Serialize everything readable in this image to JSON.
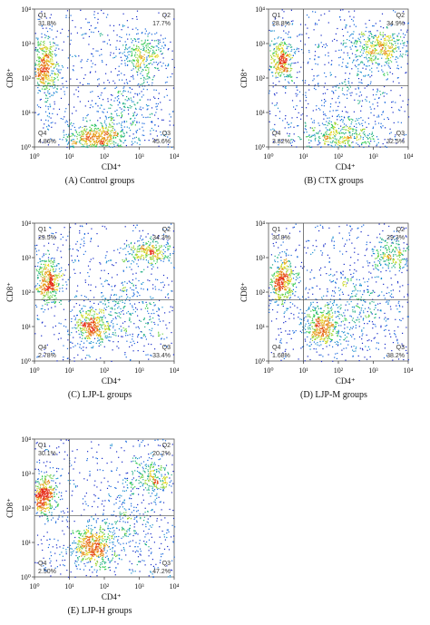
{
  "chart_data": [
    {
      "type": "scatter",
      "caption": "(A) Control groups",
      "xlabel": "CD4⁺",
      "ylabel": "CD8⁺",
      "xscale": "log",
      "yscale": "log",
      "xlim": [
        1,
        10000
      ],
      "ylim": [
        1,
        10000
      ],
      "xticks": [
        "10⁰",
        "10¹",
        "10²",
        "10³",
        "10⁴"
      ],
      "yticks": [
        "10⁰",
        "10¹",
        "10²",
        "10³",
        "10⁴"
      ],
      "gate": {
        "x": 10,
        "y": 60
      },
      "quadrants": {
        "Q1": {
          "label": "Q1",
          "value": "31.8%"
        },
        "Q2": {
          "label": "Q2",
          "value": "17.7%"
        },
        "Q3": {
          "label": "Q3",
          "value": "45.6%"
        },
        "Q4": {
          "label": "Q4",
          "value": "4.86%"
        }
      },
      "populations": [
        {
          "x": 2.0,
          "y": 220,
          "sx": 0.18,
          "sy": 0.4,
          "n": 420
        },
        {
          "x": 60,
          "y": 1.8,
          "sx": 0.45,
          "sy": 0.25,
          "n": 520
        },
        {
          "x": 1200,
          "y": 500,
          "sx": 0.35,
          "sy": 0.3,
          "n": 260
        },
        {
          "x": 500,
          "y": 15,
          "sx": 0.5,
          "sy": 0.55,
          "n": 200
        }
      ]
    },
    {
      "type": "scatter",
      "caption": "(B) CTX groups",
      "xlabel": "CD4⁺",
      "ylabel": "CD8⁺",
      "xscale": "log",
      "yscale": "log",
      "xlim": [
        1,
        10000
      ],
      "ylim": [
        1,
        10000
      ],
      "xticks": [
        "10⁰",
        "10¹",
        "10²",
        "10³",
        "10⁴"
      ],
      "yticks": [
        "10⁰",
        "10¹",
        "10²",
        "10³",
        "10⁴"
      ],
      "gate": {
        "x": 10,
        "y": 60
      },
      "quadrants": {
        "Q1": {
          "label": "Q1",
          "value": "28.8%"
        },
        "Q2": {
          "label": "Q2",
          "value": "34.9%"
        },
        "Q3": {
          "label": "Q3",
          "value": "32.5%"
        },
        "Q4": {
          "label": "Q4",
          "value": "3.82%"
        }
      },
      "populations": [
        {
          "x": 2.2,
          "y": 350,
          "sx": 0.18,
          "sy": 0.3,
          "n": 300
        },
        {
          "x": 1200,
          "y": 800,
          "sx": 0.45,
          "sy": 0.25,
          "n": 380
        },
        {
          "x": 120,
          "y": 1.8,
          "sx": 0.6,
          "sy": 0.3,
          "n": 420
        },
        {
          "x": 200,
          "y": 50,
          "sx": 0.8,
          "sy": 0.8,
          "n": 180
        }
      ]
    },
    {
      "type": "scatter",
      "caption": "(C) LJP-L groups",
      "xlabel": "CD4⁺",
      "ylabel": "CD8⁺",
      "xscale": "log",
      "yscale": "log",
      "xlim": [
        1,
        10000
      ],
      "ylim": [
        1,
        10000
      ],
      "xticks": [
        "10⁰",
        "10¹",
        "10²",
        "10³",
        "10⁴"
      ],
      "yticks": [
        "10⁰",
        "10¹",
        "10²",
        "10³",
        "10⁴"
      ],
      "gate": {
        "x": 10,
        "y": 60
      },
      "quadrants": {
        "Q1": {
          "label": "Q1",
          "value": "29.5%"
        },
        "Q2": {
          "label": "Q2",
          "value": "34.3%"
        },
        "Q3": {
          "label": "Q3",
          "value": "33.4%"
        },
        "Q4": {
          "label": "Q4",
          "value": "2.78%"
        }
      },
      "populations": [
        {
          "x": 2.5,
          "y": 200,
          "sx": 0.18,
          "sy": 0.35,
          "n": 380
        },
        {
          "x": 40,
          "y": 10,
          "sx": 0.25,
          "sy": 0.25,
          "n": 360
        },
        {
          "x": 2000,
          "y": 1500,
          "sx": 0.35,
          "sy": 0.2,
          "n": 260
        },
        {
          "x": 300,
          "y": 40,
          "sx": 0.5,
          "sy": 0.55,
          "n": 220
        }
      ]
    },
    {
      "type": "scatter",
      "caption": "(D) LJP-M groups",
      "xlabel": "CD4⁺",
      "ylabel": "CD8⁺",
      "xscale": "log",
      "yscale": "log",
      "xlim": [
        1,
        10000
      ],
      "ylim": [
        1,
        10000
      ],
      "xticks": [
        "10⁰",
        "10¹",
        "10²",
        "10³",
        "10⁴"
      ],
      "yticks": [
        "10⁰",
        "10¹",
        "10²",
        "10³",
        "10⁴"
      ],
      "gate": {
        "x": 10,
        "y": 60
      },
      "quadrants": {
        "Q1": {
          "label": "Q1",
          "value": "30.8%"
        },
        "Q2": {
          "label": "Q2",
          "value": "29.3%"
        },
        "Q3": {
          "label": "Q3",
          "value": "38.2%"
        },
        "Q4": {
          "label": "Q4",
          "value": "1.68%"
        }
      },
      "populations": [
        {
          "x": 2.5,
          "y": 200,
          "sx": 0.18,
          "sy": 0.35,
          "n": 380
        },
        {
          "x": 30,
          "y": 10,
          "sx": 0.25,
          "sy": 0.3,
          "n": 380
        },
        {
          "x": 3000,
          "y": 1200,
          "sx": 0.35,
          "sy": 0.25,
          "n": 220
        },
        {
          "x": 300,
          "y": 30,
          "sx": 0.6,
          "sy": 0.6,
          "n": 260
        }
      ]
    },
    {
      "type": "scatter",
      "caption": "(E) LJP-H groups",
      "xlabel": "CD4⁺",
      "ylabel": "CD8⁺",
      "xscale": "log",
      "yscale": "log",
      "xlim": [
        1,
        10000
      ],
      "ylim": [
        1,
        10000
      ],
      "xticks": [
        "10⁰",
        "10¹",
        "10²",
        "10³",
        "10⁴"
      ],
      "yticks": [
        "10⁰",
        "10¹",
        "10²",
        "10³",
        "10⁴"
      ],
      "gate": {
        "x": 10,
        "y": 60
      },
      "quadrants": {
        "Q1": {
          "label": "Q1",
          "value": "30.1%"
        },
        "Q2": {
          "label": "Q2",
          "value": "20.2%"
        },
        "Q3": {
          "label": "Q3",
          "value": "47.2%"
        },
        "Q4": {
          "label": "Q4",
          "value": "2.50%"
        }
      },
      "populations": [
        {
          "x": 1.8,
          "y": 250,
          "sx": 0.18,
          "sy": 0.3,
          "n": 400
        },
        {
          "x": 40,
          "y": 8,
          "sx": 0.28,
          "sy": 0.3,
          "n": 460
        },
        {
          "x": 2500,
          "y": 800,
          "sx": 0.3,
          "sy": 0.25,
          "n": 220
        },
        {
          "x": 400,
          "y": 30,
          "sx": 0.6,
          "sy": 0.6,
          "n": 240
        }
      ]
    }
  ]
}
